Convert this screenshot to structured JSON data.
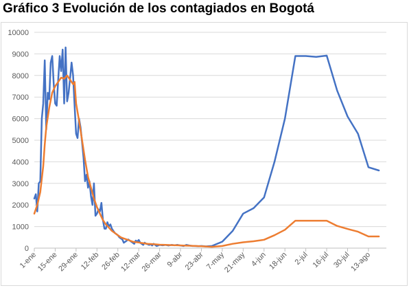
{
  "title": "Gráfico 3 Evolución de los contagiados en Bogotá",
  "chart_data": {
    "type": "line",
    "title": "Gráfico 3 Evolución de los contagiados en Bogotá",
    "xlabel": "",
    "ylabel": "",
    "ylim": [
      0,
      10000
    ],
    "yticks": [
      0,
      1000,
      2000,
      3000,
      4000,
      5000,
      6000,
      7000,
      8000,
      9000,
      10000
    ],
    "grid": true,
    "legend": "none",
    "x_tick_labels": [
      {
        "label": "1-ene",
        "day": 0
      },
      {
        "label": "15-ene",
        "day": 14
      },
      {
        "label": "29-ene",
        "day": 28
      },
      {
        "label": "12-feb",
        "day": 42
      },
      {
        "label": "26-feb",
        "day": 56
      },
      {
        "label": "12-mar",
        "day": 70
      },
      {
        "label": "26-mar",
        "day": 84
      },
      {
        "label": "9-abr",
        "day": 98
      },
      {
        "label": "23-abr",
        "day": 112
      },
      {
        "label": "7-may",
        "day": 126
      },
      {
        "label": "21-may",
        "day": 140
      },
      {
        "label": "4-jun",
        "day": 154
      },
      {
        "label": "18-jun",
        "day": 168
      },
      {
        "label": "2-jul",
        "day": 182
      },
      {
        "label": "16-jul",
        "day": 196
      },
      {
        "label": "30-jul",
        "day": 210
      },
      {
        "label": "13-ago",
        "day": 224
      }
    ],
    "x_range_days": [
      0,
      236
    ],
    "series": [
      {
        "name": "",
        "color": "#4472c4",
        "points": [
          [
            0,
            2300
          ],
          [
            1,
            2500
          ],
          [
            2,
            1700
          ],
          [
            3,
            3000
          ],
          [
            4,
            3100
          ],
          [
            5,
            6000
          ],
          [
            6,
            6700
          ],
          [
            7,
            8700
          ],
          [
            8,
            5500
          ],
          [
            9,
            7200
          ],
          [
            10,
            6900
          ],
          [
            11,
            8600
          ],
          [
            12,
            8900
          ],
          [
            13,
            7600
          ],
          [
            14,
            6700
          ],
          [
            15,
            6600
          ],
          [
            16,
            7800
          ],
          [
            17,
            8900
          ],
          [
            18,
            8200
          ],
          [
            19,
            9200
          ],
          [
            20,
            6700
          ],
          [
            21,
            9300
          ],
          [
            22,
            6800
          ],
          [
            23,
            7200
          ],
          [
            24,
            7900
          ],
          [
            25,
            8600
          ],
          [
            26,
            8000
          ],
          [
            27,
            6600
          ],
          [
            28,
            5300
          ],
          [
            29,
            5100
          ],
          [
            30,
            6000
          ],
          [
            31,
            5600
          ],
          [
            32,
            4900
          ],
          [
            33,
            4200
          ],
          [
            34,
            3100
          ],
          [
            35,
            3400
          ],
          [
            36,
            2800
          ],
          [
            37,
            3100
          ],
          [
            38,
            2400
          ],
          [
            39,
            2000
          ],
          [
            40,
            3000
          ],
          [
            41,
            1500
          ],
          [
            42,
            1600
          ],
          [
            43,
            1800
          ],
          [
            44,
            1700
          ],
          [
            45,
            2100
          ],
          [
            46,
            1300
          ],
          [
            47,
            900
          ],
          [
            48,
            900
          ],
          [
            49,
            1200
          ],
          [
            50,
            1000
          ],
          [
            51,
            1100
          ],
          [
            52,
            900
          ],
          [
            53,
            800
          ],
          [
            54,
            700
          ],
          [
            55,
            650
          ],
          [
            56,
            600
          ],
          [
            57,
            500
          ],
          [
            58,
            450
          ],
          [
            59,
            400
          ],
          [
            60,
            250
          ],
          [
            61,
            300
          ],
          [
            62,
            350
          ],
          [
            63,
            400
          ],
          [
            64,
            350
          ],
          [
            65,
            300
          ],
          [
            66,
            250
          ],
          [
            67,
            200
          ],
          [
            68,
            350
          ],
          [
            69,
            300
          ],
          [
            70,
            380
          ],
          [
            71,
            250
          ],
          [
            72,
            200
          ],
          [
            73,
            150
          ],
          [
            74,
            250
          ],
          [
            75,
            200
          ],
          [
            76,
            180
          ],
          [
            77,
            150
          ],
          [
            78,
            180
          ],
          [
            79,
            120
          ],
          [
            80,
            200
          ],
          [
            81,
            150
          ],
          [
            82,
            100
          ],
          [
            84,
            150
          ],
          [
            86,
            130
          ],
          [
            88,
            150
          ],
          [
            90,
            120
          ],
          [
            92,
            150
          ],
          [
            94,
            130
          ],
          [
            96,
            150
          ],
          [
            98,
            120
          ],
          [
            100,
            100
          ],
          [
            102,
            150
          ],
          [
            104,
            120
          ],
          [
            106,
            100
          ],
          [
            108,
            100
          ],
          [
            110,
            90
          ],
          [
            112,
            100
          ],
          [
            115,
            80
          ],
          [
            119,
            100
          ],
          [
            126,
            300
          ],
          [
            133,
            800
          ],
          [
            140,
            1600
          ],
          [
            147,
            1850
          ],
          [
            154,
            2350
          ],
          [
            161,
            4000
          ],
          [
            168,
            6000
          ],
          [
            175,
            8900
          ],
          [
            182,
            8900
          ],
          [
            189,
            8860
          ],
          [
            196,
            8920
          ],
          [
            203,
            7300
          ],
          [
            210,
            6100
          ],
          [
            217,
            5300
          ],
          [
            224,
            3750
          ],
          [
            231,
            3600
          ]
        ]
      },
      {
        "name": "",
        "color": "#ed7d31",
        "points": [
          [
            0,
            1600
          ],
          [
            2,
            2000
          ],
          [
            4,
            2600
          ],
          [
            6,
            3800
          ],
          [
            7,
            4800
          ],
          [
            8,
            5600
          ],
          [
            10,
            6500
          ],
          [
            12,
            7200
          ],
          [
            14,
            7500
          ],
          [
            16,
            7700
          ],
          [
            18,
            7900
          ],
          [
            20,
            7850
          ],
          [
            22,
            8000
          ],
          [
            24,
            7800
          ],
          [
            26,
            7600
          ],
          [
            27,
            7700
          ],
          [
            28,
            6700
          ],
          [
            30,
            5900
          ],
          [
            32,
            5000
          ],
          [
            34,
            4100
          ],
          [
            36,
            3300
          ],
          [
            38,
            2800
          ],
          [
            40,
            2300
          ],
          [
            42,
            1900
          ],
          [
            44,
            1600
          ],
          [
            46,
            1300
          ],
          [
            48,
            1100
          ],
          [
            50,
            950
          ],
          [
            52,
            800
          ],
          [
            54,
            700
          ],
          [
            56,
            600
          ],
          [
            58,
            500
          ],
          [
            60,
            450
          ],
          [
            62,
            400
          ],
          [
            64,
            350
          ],
          [
            66,
            300
          ],
          [
            68,
            280
          ],
          [
            70,
            260
          ],
          [
            72,
            240
          ],
          [
            74,
            220
          ],
          [
            76,
            200
          ],
          [
            78,
            190
          ],
          [
            80,
            180
          ],
          [
            84,
            160
          ],
          [
            88,
            150
          ],
          [
            92,
            140
          ],
          [
            96,
            130
          ],
          [
            100,
            120
          ],
          [
            104,
            110
          ],
          [
            108,
            100
          ],
          [
            112,
            90
          ],
          [
            116,
            70
          ],
          [
            119,
            60
          ],
          [
            126,
            100
          ],
          [
            133,
            200
          ],
          [
            140,
            270
          ],
          [
            147,
            320
          ],
          [
            154,
            390
          ],
          [
            161,
            600
          ],
          [
            168,
            850
          ],
          [
            175,
            1270
          ],
          [
            182,
            1270
          ],
          [
            189,
            1270
          ],
          [
            196,
            1270
          ],
          [
            203,
            1030
          ],
          [
            210,
            890
          ],
          [
            217,
            760
          ],
          [
            224,
            540
          ],
          [
            231,
            540
          ]
        ]
      }
    ]
  }
}
